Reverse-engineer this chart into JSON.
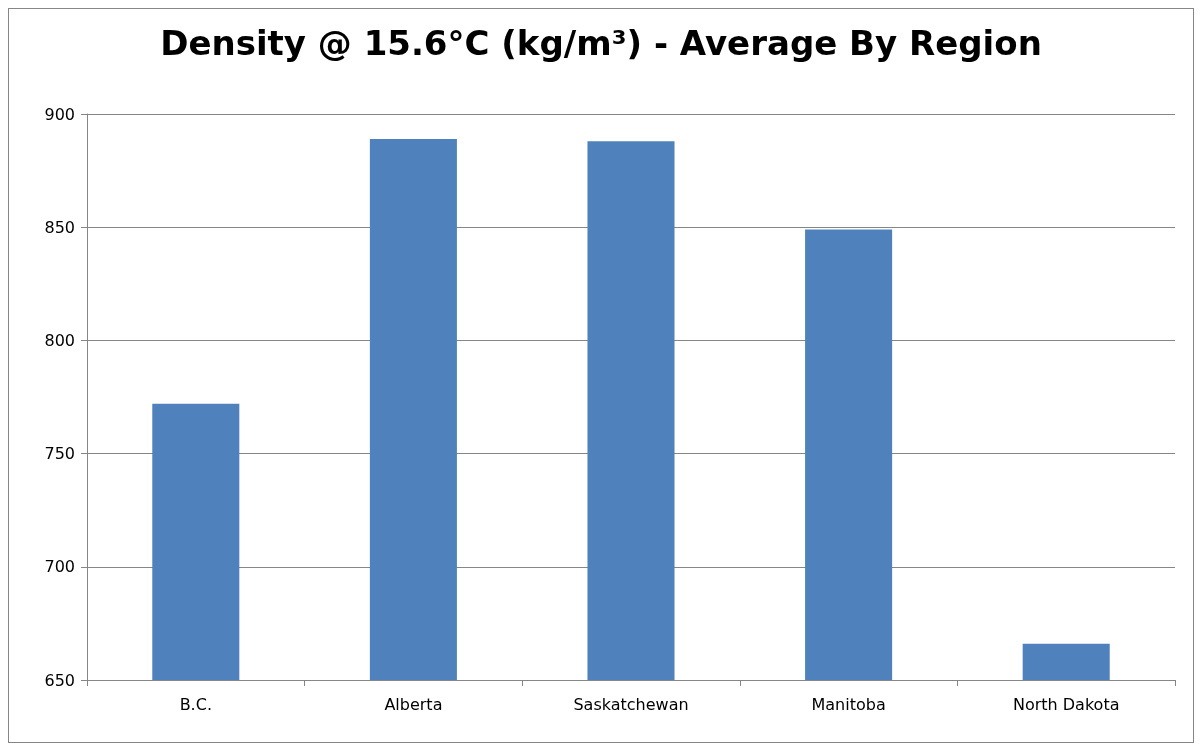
{
  "chart_data": {
    "type": "bar",
    "title": "Density @ 15.6°C (kg/m³) - Average By Region",
    "categories": [
      "B.C.",
      "Alberta",
      "Saskatchewan",
      "Manitoba",
      "North Dakota"
    ],
    "values": [
      772,
      889,
      888,
      849,
      666
    ],
    "color": "#4f81bd",
    "ylim": [
      650,
      900
    ],
    "yticks": [
      650,
      700,
      750,
      800,
      850,
      900
    ],
    "grid": "y"
  }
}
